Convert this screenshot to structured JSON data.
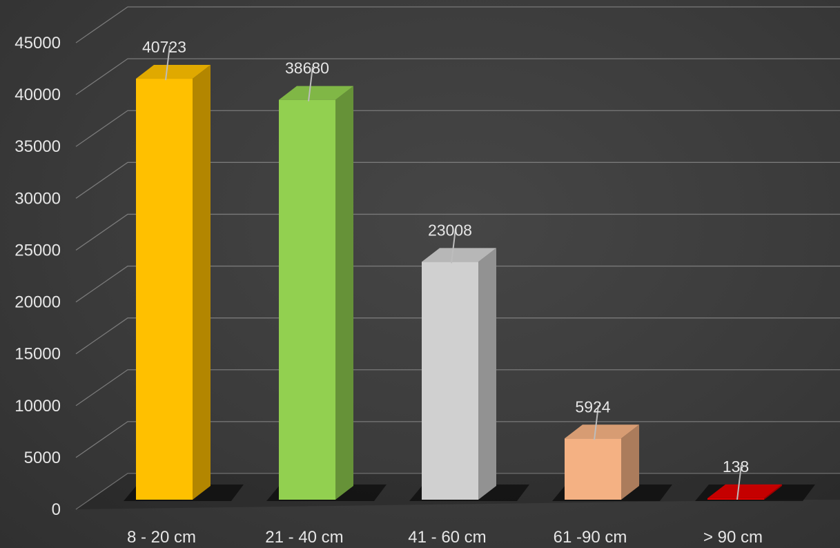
{
  "chart_data": {
    "type": "bar",
    "style": "3d-column",
    "title": "",
    "xlabel": "",
    "ylabel": "",
    "ylim": [
      0,
      45000
    ],
    "yticks": [
      0,
      5000,
      10000,
      15000,
      20000,
      25000,
      30000,
      35000,
      40000,
      45000
    ],
    "grid": true,
    "legend": "none",
    "categories": [
      "8 - 20 cm",
      "21 - 40 cm",
      "41 - 60 cm",
      "61 -90 cm",
      "> 90 cm"
    ],
    "values": [
      40723,
      38680,
      23008,
      5924,
      138
    ],
    "data_labels": [
      "40723",
      "38680",
      "23008",
      "5924",
      "138"
    ],
    "colors": [
      "#ffc000",
      "#92d050",
      "#d0d0d0",
      "#f4b183",
      "#e00000"
    ]
  }
}
